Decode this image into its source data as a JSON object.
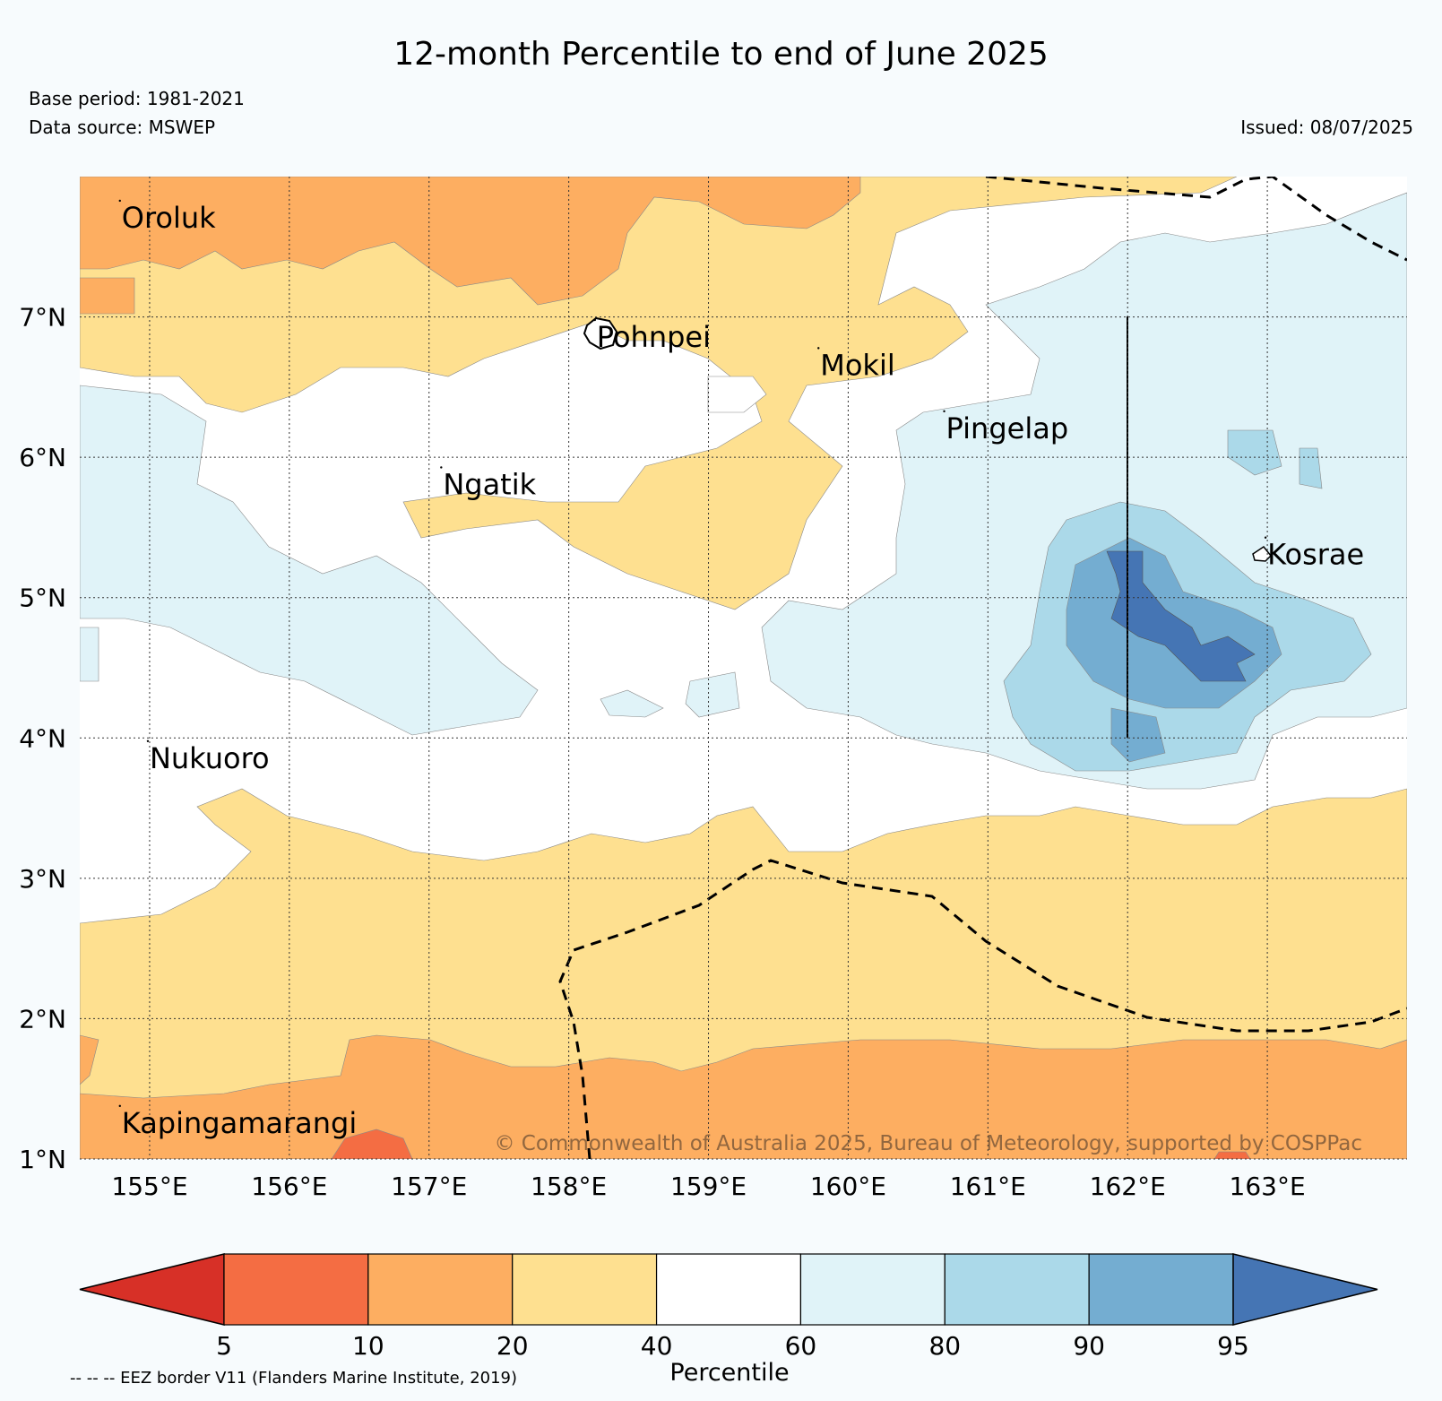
{
  "title": "12-month Percentile to end of June 2025",
  "base_period": "Base period: 1981-2021",
  "data_source": "Data source: MSWEP",
  "issued": "Issued: 08/07/2025",
  "copyright": "© Commonwealth of Australia 2025, Bureau of Meteorology, supported by COSPPac",
  "map": {
    "lon_range": [
      154.5,
      164.0
    ],
    "lat_range": [
      1.0,
      8.0
    ],
    "x_ticks": [
      {
        "value": 155,
        "label": "155°E"
      },
      {
        "value": 156,
        "label": "156°E"
      },
      {
        "value": 157,
        "label": "157°E"
      },
      {
        "value": 158,
        "label": "158°E"
      },
      {
        "value": 159,
        "label": "159°E"
      },
      {
        "value": 160,
        "label": "160°E"
      },
      {
        "value": 161,
        "label": "161°E"
      },
      {
        "value": 162,
        "label": "162°E"
      },
      {
        "value": 163,
        "label": "163°E"
      }
    ],
    "y_ticks": [
      {
        "value": 1,
        "label": "1°N"
      },
      {
        "value": 2,
        "label": "2°N"
      },
      {
        "value": 3,
        "label": "3°N"
      },
      {
        "value": 4,
        "label": "4°N"
      },
      {
        "value": 5,
        "label": "5°N"
      },
      {
        "value": 6,
        "label": "6°N"
      },
      {
        "value": 7,
        "label": "7°N"
      }
    ],
    "places": [
      {
        "name": "Oroluk",
        "lon": 154.8,
        "lat": 7.7
      },
      {
        "name": "Pohnpei",
        "lon": 158.2,
        "lat": 6.85
      },
      {
        "name": "Mokil",
        "lon": 159.8,
        "lat": 6.65
      },
      {
        "name": "Pingelap",
        "lon": 160.7,
        "lat": 6.2
      },
      {
        "name": "Ngatik",
        "lon": 157.1,
        "lat": 5.8
      },
      {
        "name": "Kosrae",
        "lon": 163.0,
        "lat": 5.3
      },
      {
        "name": "Nukuoro",
        "lon": 155.0,
        "lat": 3.85
      },
      {
        "name": "Kapingamarangi",
        "lon": 154.8,
        "lat": 1.25
      }
    ]
  },
  "colorbar": {
    "label": "Percentile",
    "ticks": [
      "5",
      "10",
      "20",
      "40",
      "60",
      "80",
      "90",
      "95"
    ],
    "colors": [
      "#d73027",
      "#f46d43",
      "#fdae61",
      "#fee090",
      "#ffffff",
      "#e0f3f8",
      "#abd9e9",
      "#74add1",
      "#4575b4"
    ]
  },
  "eez_note": "-- -- -- EEZ border V11 (Flanders Marine Institute, 2019)"
}
